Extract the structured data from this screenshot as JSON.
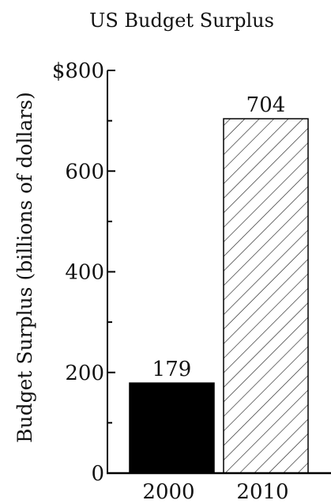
{
  "chart_data": {
    "type": "bar",
    "title": "US Budget Surplus",
    "ylabel": "Budget Surplus (billions of dollars)",
    "xlabel": "",
    "ylim": [
      0,
      800
    ],
    "y_ticks": [
      {
        "value": 0,
        "label": "0"
      },
      {
        "value": 200,
        "label": "200"
      },
      {
        "value": 400,
        "label": "400"
      },
      {
        "value": 600,
        "label": "600"
      },
      {
        "value": 800,
        "label": "$800"
      }
    ],
    "minor_tick_step": 100,
    "categories": [
      "2000",
      "2010"
    ],
    "values": [
      179,
      704
    ],
    "data_labels": [
      "179",
      "704"
    ],
    "bar_styles": [
      "solid-black",
      "diagonal-hatch"
    ],
    "grid": false,
    "legend": "none"
  },
  "colors": {
    "bar_solid": "#000000",
    "hatch_line": "#222222",
    "axis": "#000000"
  }
}
